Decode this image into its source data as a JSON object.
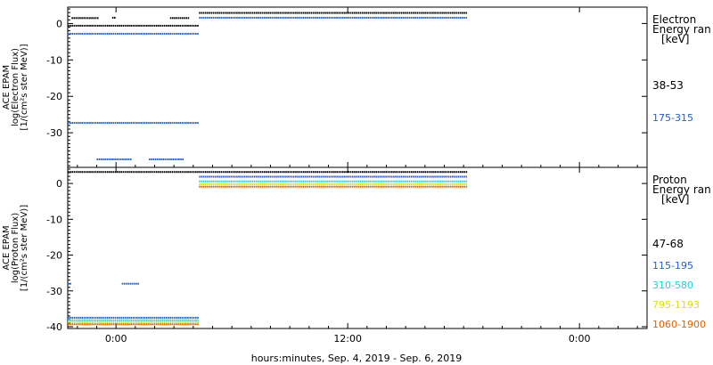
{
  "footer": {
    "xlabel": "hours:minutes, Sep.  4, 2019 - Sep.  6, 2019"
  },
  "x_ticks": [
    "0:00",
    "12:00",
    "0:00"
  ],
  "chart_data": [
    {
      "type": "scatter",
      "panel": "electron",
      "ylabel": [
        "ACE EPAM",
        "log(Electron Flux)",
        "[1/(cm²s ster MeV)]"
      ],
      "ylim": [
        -39.5,
        4.5
      ],
      "yticks": [
        0,
        -10,
        -20,
        -30
      ],
      "legend_title": [
        "Electron",
        "Energy ran",
        "[keV]"
      ],
      "xlabel": "hours:minutes, Sep.  4, 2019 - Sep.  6, 2019",
      "x_range_hours": [
        -2.5,
        27.5
      ],
      "series": [
        {
          "name": "38-53",
          "color": "#000000",
          "segments": [
            {
              "x": [
                -2.3,
                -0.9
              ],
              "y": 1.5
            },
            {
              "x": -0.2,
              "y": 1.6
            },
            {
              "x": [
                2.8,
                3.8
              ],
              "y": 1.5
            },
            {
              "x": [
                -2.5,
                4.3
              ],
              "y": -0.6
            },
            {
              "x": [
                4.3,
                18.2
              ],
              "y": 2.9
            }
          ]
        },
        {
          "name": "175-315",
          "color": "#1f5fd4",
          "segments": [
            {
              "x": [
                -2.5,
                4.3
              ],
              "y": -2.8
            },
            {
              "x": [
                -2.5,
                4.3
              ],
              "y": -27.3
            },
            {
              "x": [
                -1.0,
                0.8
              ],
              "y": -37.3
            },
            {
              "x": [
                1.7,
                3.5
              ],
              "y": -37.3
            },
            {
              "x": [
                4.3,
                18.2
              ],
              "y": 1.6
            }
          ]
        }
      ]
    },
    {
      "type": "scatter",
      "panel": "proton",
      "ylabel": [
        "ACE EPAM",
        "log(Proton Flux)",
        "[1/(cm²s ster MeV)]"
      ],
      "ylim": [
        -40.5,
        4.5
      ],
      "yticks": [
        0,
        -10,
        -20,
        -30,
        -40
      ],
      "legend_title": [
        "Proton",
        "Energy ran",
        "[keV]"
      ],
      "xlabel": "hours:minutes, Sep.  4, 2019 - Sep.  6, 2019",
      "x_range_hours": [
        -2.5,
        27.5
      ],
      "series": [
        {
          "name": "47-68",
          "color": "#000000",
          "segments": [
            {
              "x": [
                -2.5,
                18.2
              ],
              "y": 3.2
            }
          ]
        },
        {
          "name": "115-195",
          "color": "#1f5fd4",
          "segments": [
            {
              "x": [
                4.3,
                18.2
              ],
              "y": 1.9
            },
            {
              "x": [
                -2.5,
                4.3
              ],
              "y": -37.5
            },
            {
              "x": [
                -2.5,
                -2.3
              ],
              "y": -28.0
            },
            {
              "x": [
                0.3,
                1.2
              ],
              "y": -28.0
            }
          ]
        },
        {
          "name": "310-580",
          "color": "#17d4e0",
          "segments": [
            {
              "x": [
                4.3,
                18.2
              ],
              "y": 0.6
            },
            {
              "x": [
                -2.5,
                4.3
              ],
              "y": -38.2
            }
          ]
        },
        {
          "name": "795-1193",
          "color": "#e0e000",
          "segments": [
            {
              "x": [
                4.3,
                18.2
              ],
              "y": -0.2
            },
            {
              "x": [
                -2.5,
                4.3
              ],
              "y": -38.7
            }
          ]
        },
        {
          "name": "1060-1900",
          "color": "#e26000",
          "segments": [
            {
              "x": [
                4.3,
                18.2
              ],
              "y": -0.9
            },
            {
              "x": [
                -2.5,
                4.3
              ],
              "y": -39.3
            }
          ]
        }
      ]
    }
  ]
}
